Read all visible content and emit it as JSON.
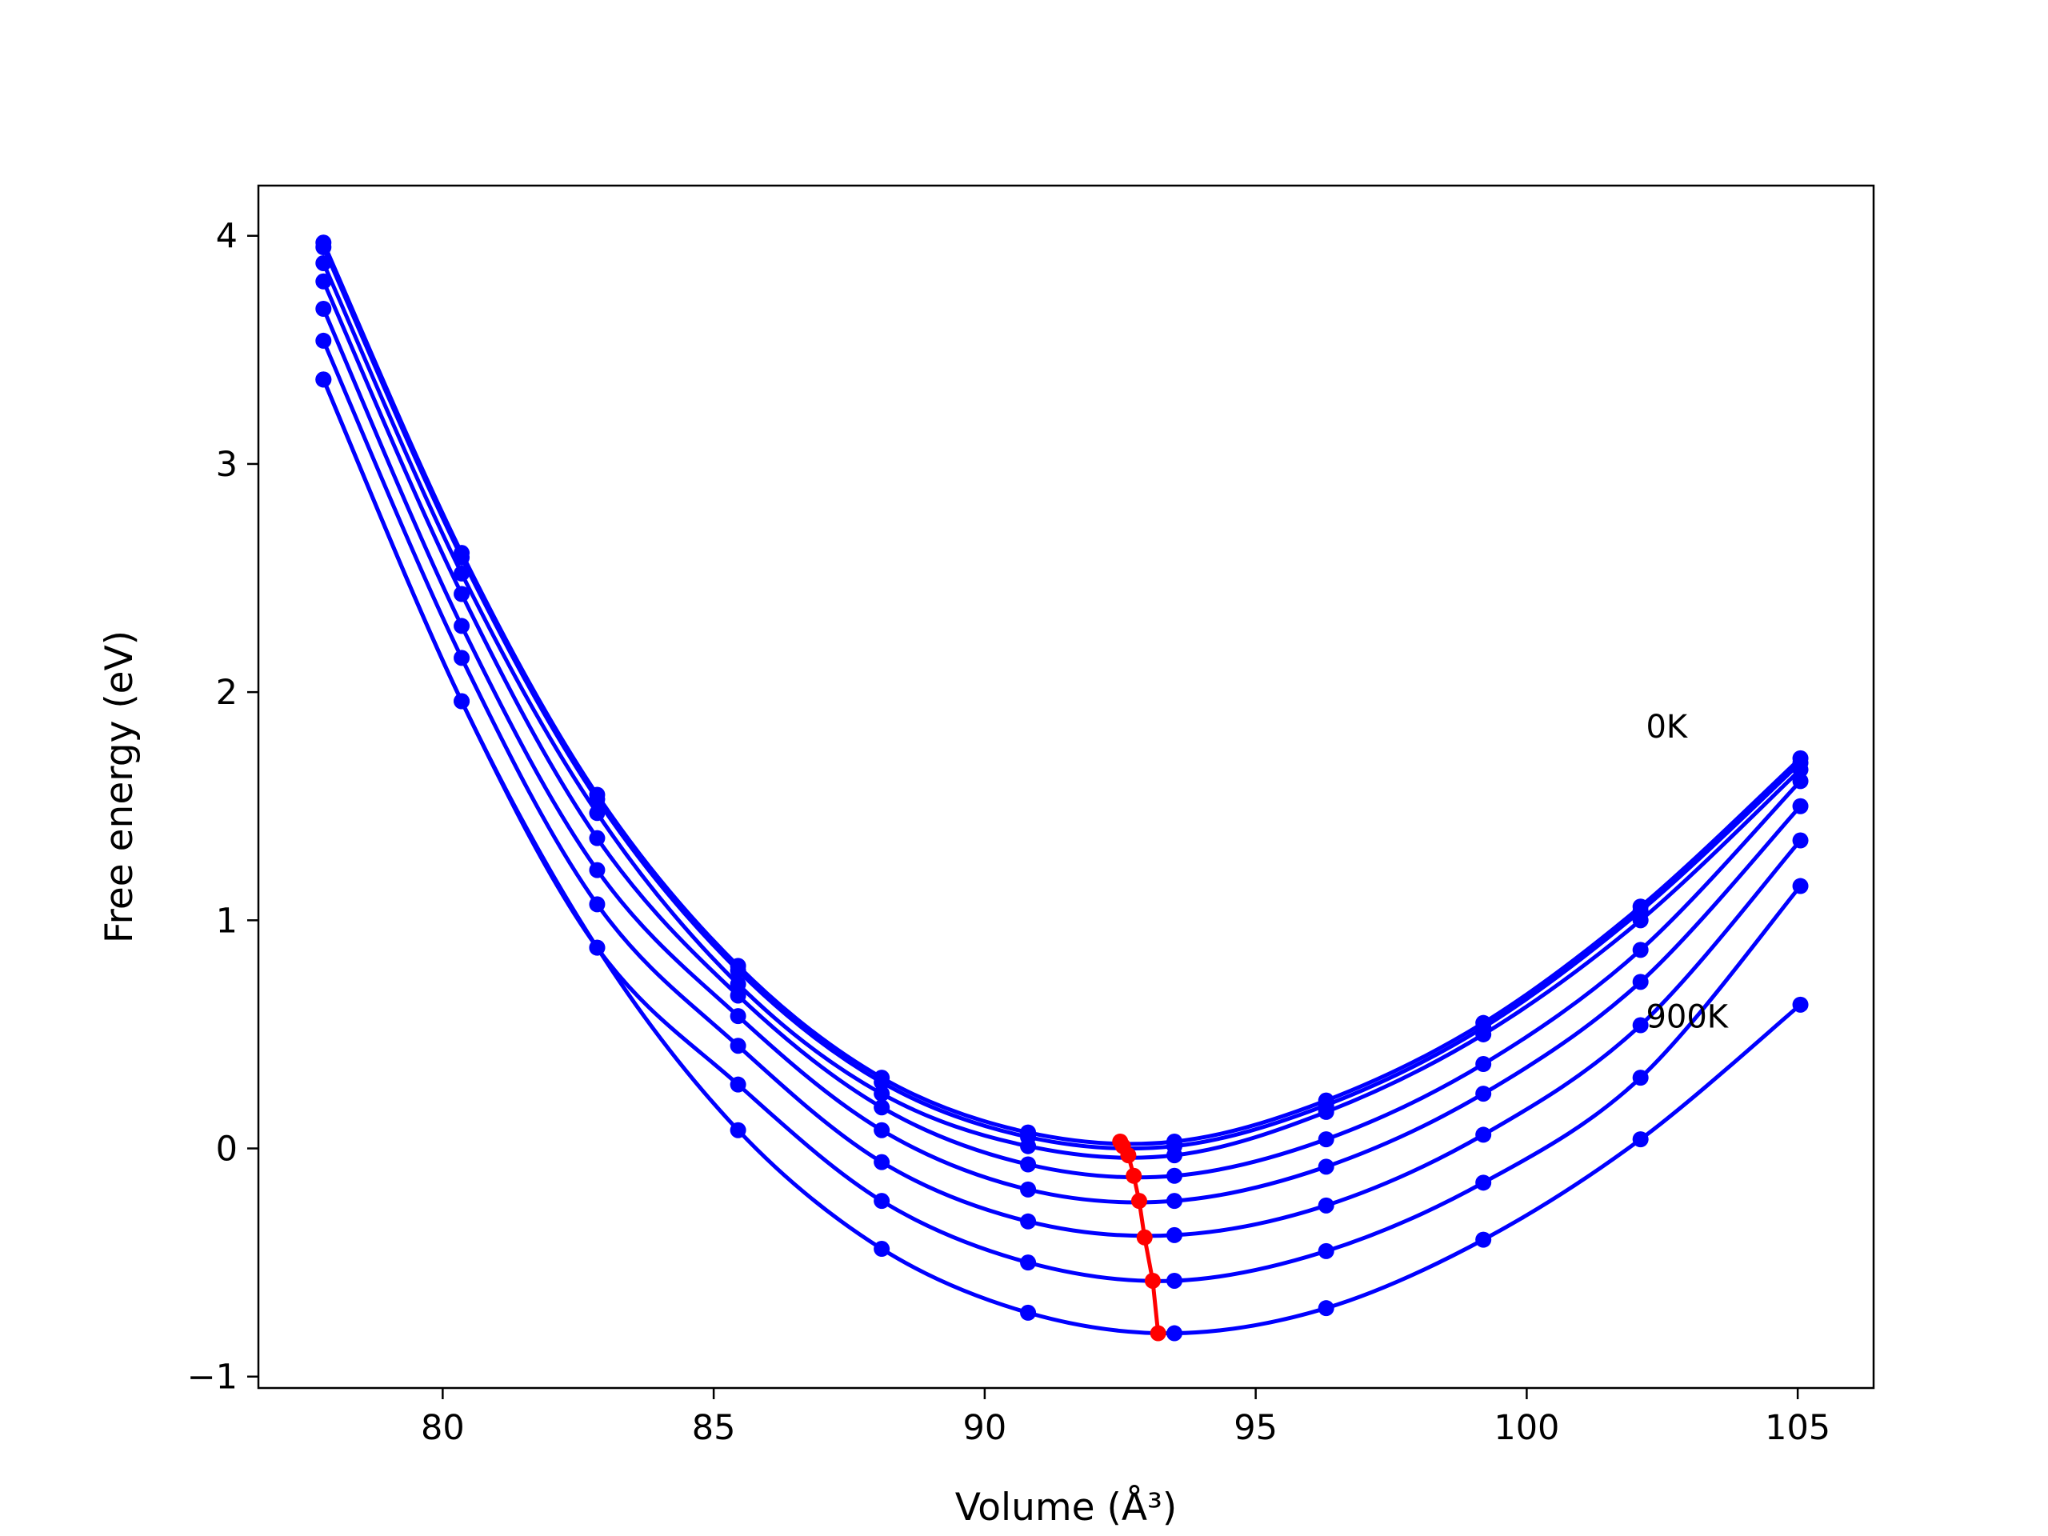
{
  "chart_data": {
    "type": "line",
    "title": "",
    "xlabel": "Volume (Å³)",
    "ylabel": "Free energy (eV)",
    "xlim": [
      76.6,
      106.4
    ],
    "ylim": [
      -1.05,
      4.22
    ],
    "xticks": [
      80,
      85,
      90,
      95,
      100,
      105
    ],
    "xtick_labels": [
      "80",
      "85",
      "90",
      "95",
      "100",
      "105"
    ],
    "yticks": [
      -1,
      0,
      1,
      2,
      3,
      4
    ],
    "ytick_labels": [
      "−1",
      "0",
      "1",
      "2",
      "3",
      "4"
    ],
    "grid": false,
    "legend": "none",
    "annotations": [
      {
        "text": "0K",
        "x": 102.2,
        "y": 1.8
      },
      {
        "text": "900K",
        "x": 102.2,
        "y": 0.53
      }
    ],
    "series_color": "#0000ff",
    "minima_color": "#ff0000",
    "series": [
      {
        "x": [
          77.8,
          80.35,
          82.85,
          85.45,
          88.1,
          90.8,
          93.5,
          96.3,
          99.2,
          102.1,
          105.05
        ],
        "y": [
          3.97,
          2.61,
          1.55,
          0.8,
          0.31,
          0.07,
          0.03,
          0.21,
          0.55,
          1.06,
          1.71
        ]
      },
      {
        "x": [
          77.8,
          80.35,
          82.85,
          85.45,
          88.1,
          90.8,
          93.5,
          96.3,
          99.2,
          102.1,
          105.05
        ],
        "y": [
          3.95,
          2.59,
          1.53,
          0.78,
          0.29,
          0.05,
          0.01,
          0.19,
          0.53,
          1.04,
          1.69
        ]
      },
      {
        "x": [
          77.8,
          80.35,
          82.85,
          85.45,
          88.1,
          90.8,
          93.5,
          96.3,
          99.2,
          102.1,
          105.05
        ],
        "y": [
          3.88,
          2.52,
          1.47,
          0.72,
          0.24,
          0.01,
          -0.03,
          0.16,
          0.5,
          1.0,
          1.66
        ]
      },
      {
        "x": [
          77.8,
          80.35,
          82.85,
          85.45,
          88.1,
          90.8,
          93.5,
          96.3,
          99.2,
          102.1,
          105.05
        ],
        "y": [
          3.8,
          2.43,
          1.36,
          0.67,
          0.18,
          -0.07,
          -0.12,
          0.04,
          0.37,
          0.87,
          1.61
        ]
      },
      {
        "x": [
          77.8,
          80.35,
          82.85,
          85.45,
          88.1,
          90.8,
          93.5,
          96.3,
          99.2,
          102.1,
          105.05
        ],
        "y": [
          3.68,
          2.29,
          1.22,
          0.58,
          0.08,
          -0.18,
          -0.23,
          -0.08,
          0.24,
          0.73,
          1.5
        ]
      },
      {
        "x": [
          77.8,
          80.35,
          82.85,
          85.45,
          88.1,
          90.8,
          93.5,
          96.3,
          99.2,
          102.1,
          105.05
        ],
        "y": [
          3.54,
          2.15,
          1.07,
          0.45,
          -0.06,
          -0.32,
          -0.38,
          -0.25,
          0.06,
          0.54,
          1.35
        ]
      },
      {
        "x": [
          77.8,
          80.35,
          82.85,
          85.45,
          88.1,
          90.8,
          93.5,
          96.3,
          99.2,
          102.1,
          105.05
        ],
        "y": [
          3.37,
          1.96,
          0.88,
          0.28,
          -0.23,
          -0.5,
          -0.58,
          -0.45,
          -0.15,
          0.31,
          1.15
        ]
      },
      {
        "x": [
          77.8,
          80.35,
          82.85,
          85.45,
          88.1,
          90.8,
          93.5,
          96.3,
          99.2,
          102.1,
          105.05
        ],
        "y": [
          3.37,
          1.96,
          0.88,
          0.08,
          -0.44,
          -0.72,
          -0.81,
          -0.7,
          -0.4,
          0.04,
          0.63
        ]
      }
    ],
    "minima": {
      "x": [
        92.5,
        92.55,
        92.65,
        92.75,
        92.85,
        92.95,
        93.1,
        93.2
      ],
      "y": [
        0.03,
        0.01,
        -0.03,
        -0.12,
        -0.23,
        -0.39,
        -0.58,
        -0.81
      ]
    }
  }
}
